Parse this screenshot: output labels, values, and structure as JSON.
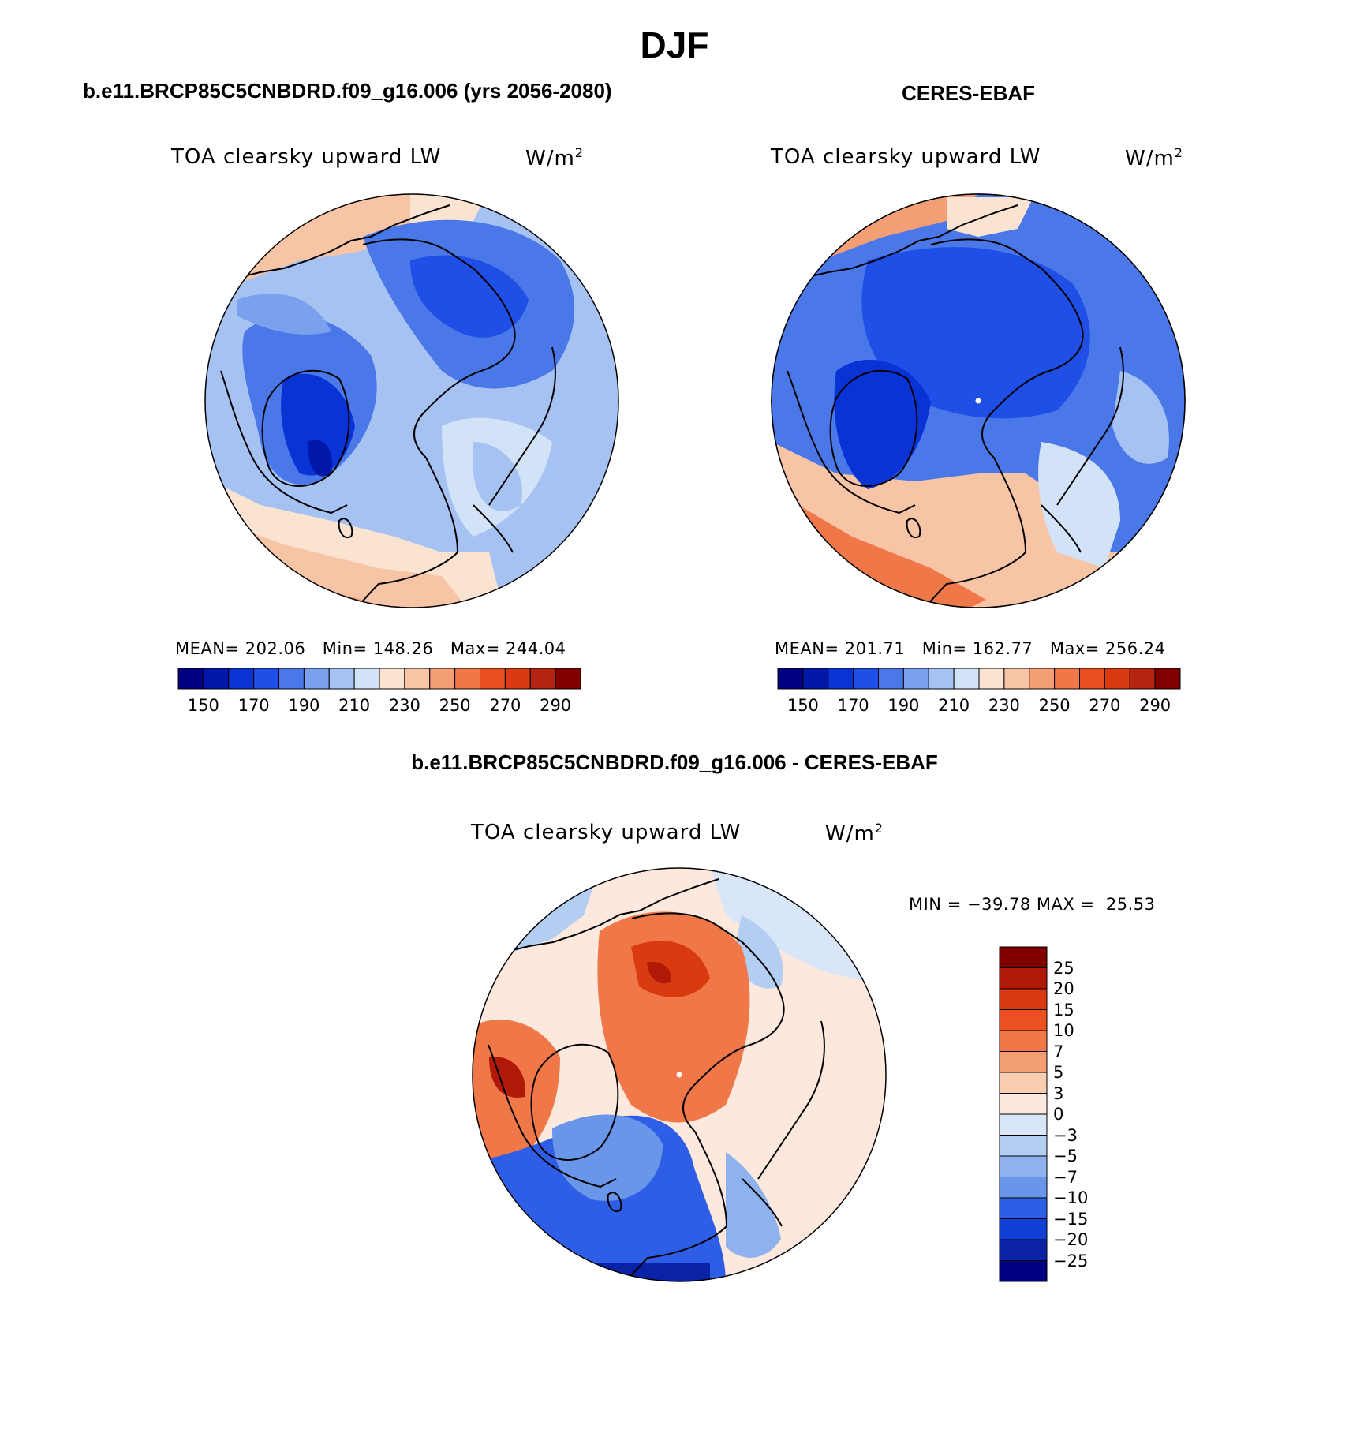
{
  "figure": {
    "season_title": "DJF"
  },
  "panels": {
    "model": {
      "title": "b.e11.BRCP85C5CNBDRD.f09_g16.006 (yrs 2056-2080)",
      "variable": "TOA clearsky upward LW",
      "units": "W/m",
      "units_exponent": "2",
      "stats": {
        "mean_label": "MEAN=",
        "mean": "202.06",
        "min_label": "Min=",
        "min": "148.26",
        "max_label": "Max=",
        "max": "244.04"
      }
    },
    "obs": {
      "title": "CERES-EBAF",
      "variable": "TOA clearsky upward LW",
      "units": "W/m",
      "units_exponent": "2",
      "stats": {
        "mean_label": "MEAN=",
        "mean": "201.71",
        "min_label": "Min=",
        "min": "162.77",
        "max_label": "Max=",
        "max": "256.24"
      }
    },
    "diff": {
      "title": "b.e11.BRCP85C5CNBDRD.f09_g16.006 - CERES-EBAF",
      "variable": "TOA clearsky upward LW",
      "units": "W/m",
      "units_exponent": "2",
      "stats": {
        "min_label": "MIN =",
        "min": "−39.78",
        "max_label": "MAX =",
        "max": "25.53"
      }
    }
  },
  "colorbar_abs": {
    "colors": [
      "#000080",
      "#0018a8",
      "#0a33d6",
      "#1f4fe6",
      "#4a78e8",
      "#7aa0ee",
      "#a6c2f2",
      "#d2e3f7",
      "#fbe3d2",
      "#f7c4a6",
      "#f49e76",
      "#f07848",
      "#ea4f20",
      "#d93a10",
      "#b52410",
      "#800000"
    ],
    "tick_labels": [
      "150",
      "170",
      "190",
      "210",
      "230",
      "250",
      "270",
      "290"
    ]
  },
  "colorbar_diff": {
    "colors": [
      "#800000",
      "#b01808",
      "#d93a10",
      "#ea5020",
      "#f07848",
      "#f49e76",
      "#f8cdb0",
      "#fce8dc",
      "#d8e6f8",
      "#b4cdf2",
      "#8eb2ee",
      "#6a96ea",
      "#2e5ee6",
      "#123fd8",
      "#0a22a6",
      "#000080"
    ],
    "tick_labels": [
      "25",
      "20",
      "15",
      "10",
      "7",
      "5",
      "3",
      "0",
      "−3",
      "−5",
      "−7",
      "−10",
      "−15",
      "−20",
      "−25"
    ]
  },
  "map_colors": {
    "coast": "#000000",
    "pole_marker": "#ffffff"
  }
}
